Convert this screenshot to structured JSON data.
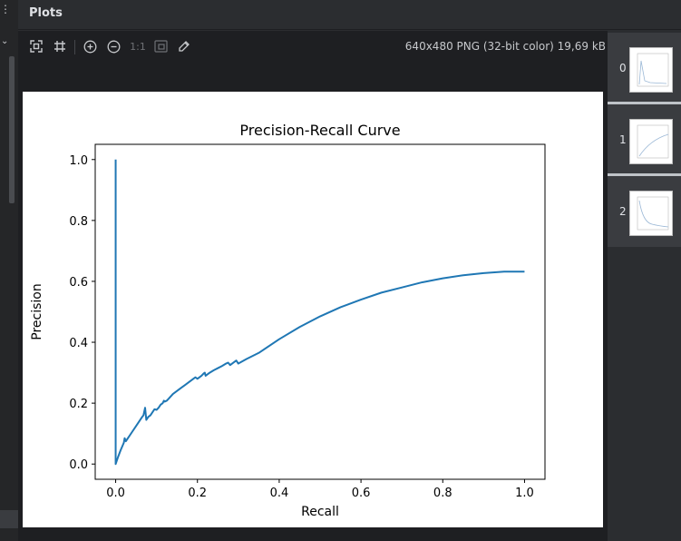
{
  "header": {
    "title": "Plots"
  },
  "toolbar": {
    "zoom_1to1_label": "1:1",
    "image_info": "640x480 PNG (32-bit color) 19,69 kB"
  },
  "thumbnails": [
    {
      "index": "0"
    },
    {
      "index": "1"
    },
    {
      "index": "2"
    }
  ],
  "chart_data": {
    "type": "line",
    "title": "Precision-Recall Curve",
    "xlabel": "Recall",
    "ylabel": "Precision",
    "xlim": [
      -0.05,
      1.05
    ],
    "ylim": [
      -0.05,
      1.05
    ],
    "xticks": [
      "0.0",
      "0.2",
      "0.4",
      "0.6",
      "0.8",
      "1.0"
    ],
    "yticks": [
      "0.0",
      "0.2",
      "0.4",
      "0.6",
      "0.8",
      "1.0"
    ],
    "color": "#1f77b4",
    "series": [
      {
        "x": [
          0.0,
          0.0,
          0.0,
          0.005,
          0.012,
          0.02,
          0.022,
          0.025,
          0.03,
          0.04,
          0.05,
          0.06,
          0.065,
          0.068,
          0.072,
          0.075,
          0.08,
          0.085,
          0.09,
          0.095,
          0.1,
          0.105,
          0.11,
          0.115,
          0.118,
          0.12,
          0.125,
          0.13,
          0.14,
          0.15,
          0.16,
          0.17,
          0.18,
          0.19,
          0.195,
          0.2,
          0.21,
          0.215,
          0.218,
          0.22,
          0.23,
          0.24,
          0.25,
          0.26,
          0.27,
          0.275,
          0.28,
          0.29,
          0.295,
          0.3,
          0.32,
          0.35,
          0.4,
          0.45,
          0.5,
          0.55,
          0.6,
          0.65,
          0.7,
          0.75,
          0.8,
          0.85,
          0.9,
          0.95,
          1.0
        ],
        "y": [
          1.0,
          0.5,
          0.0,
          0.02,
          0.045,
          0.07,
          0.085,
          0.075,
          0.085,
          0.105,
          0.125,
          0.145,
          0.155,
          0.16,
          0.185,
          0.145,
          0.155,
          0.16,
          0.17,
          0.18,
          0.178,
          0.185,
          0.195,
          0.2,
          0.208,
          0.205,
          0.208,
          0.215,
          0.23,
          0.24,
          0.25,
          0.26,
          0.27,
          0.28,
          0.285,
          0.28,
          0.29,
          0.297,
          0.3,
          0.29,
          0.3,
          0.308,
          0.315,
          0.322,
          0.33,
          0.333,
          0.325,
          0.335,
          0.34,
          0.33,
          0.345,
          0.365,
          0.41,
          0.45,
          0.485,
          0.515,
          0.54,
          0.563,
          0.58,
          0.597,
          0.61,
          0.62,
          0.627,
          0.632,
          0.632
        ]
      }
    ],
    "grid": false,
    "legend": "none"
  }
}
